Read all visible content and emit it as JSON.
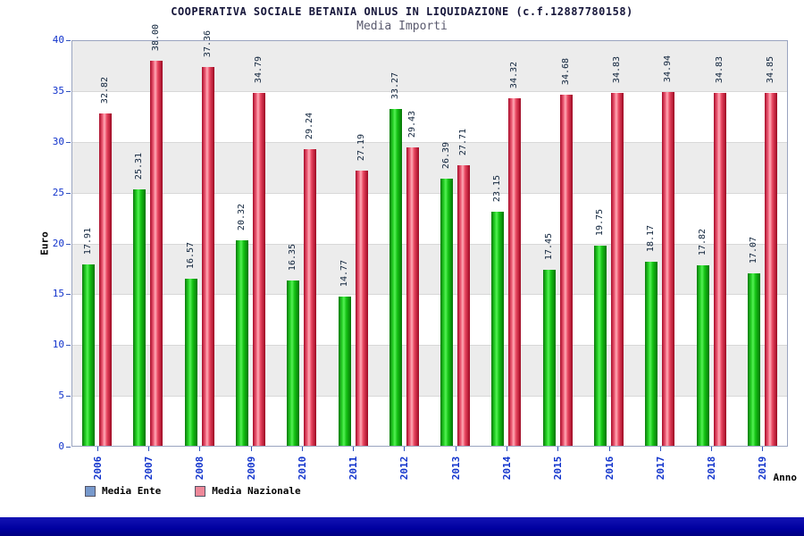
{
  "title": "COOPERATIVA SOCIALE BETANIA ONLUS IN LIQUIDAZIONE (c.f.12887780158)",
  "subtitle": "Media Importi",
  "axes": {
    "ylabel": "Euro",
    "xlabel": "Anno"
  },
  "legend": [
    {
      "label": "Media Ente",
      "swatch_color": "#7799cc"
    },
    {
      "label": "Media Nazionale",
      "swatch_color": "#ee8899"
    }
  ],
  "colors": {
    "bar_green": "#22cc22",
    "bar_red": "#e8455f",
    "axis_text_blue": "#1133cc",
    "band_gray": "#ececec",
    "bottom_bar_navy": "#0000a0",
    "title_navy": "#16163a"
  },
  "chart_data": {
    "type": "bar",
    "title": "COOPERATIVA SOCIALE BETANIA ONLUS IN LIQUIDAZIONE (c.f.12887780158)",
    "subtitle": "Media Importi",
    "xlabel": "Anno",
    "ylabel": "Euro",
    "ylim": [
      0,
      40
    ],
    "yticks": [
      0,
      5,
      10,
      15,
      20,
      25,
      30,
      35,
      40
    ],
    "grid": true,
    "legend_position": "bottom-left",
    "categories": [
      "2006",
      "2007",
      "2008",
      "2009",
      "2010",
      "2011",
      "2012",
      "2013",
      "2014",
      "2015",
      "2016",
      "2017",
      "2018",
      "2019"
    ],
    "series": [
      {
        "name": "Media Ente",
        "color": "#22cc22",
        "values": [
          17.91,
          25.31,
          16.57,
          20.32,
          16.35,
          14.77,
          33.27,
          26.39,
          23.15,
          17.45,
          19.75,
          18.17,
          17.82,
          17.07
        ]
      },
      {
        "name": "Media Nazionale",
        "color": "#e8455f",
        "values": [
          32.82,
          38.0,
          37.36,
          34.79,
          29.24,
          27.19,
          29.43,
          27.71,
          34.32,
          34.68,
          34.83,
          34.94,
          34.83,
          34.85
        ]
      }
    ]
  }
}
